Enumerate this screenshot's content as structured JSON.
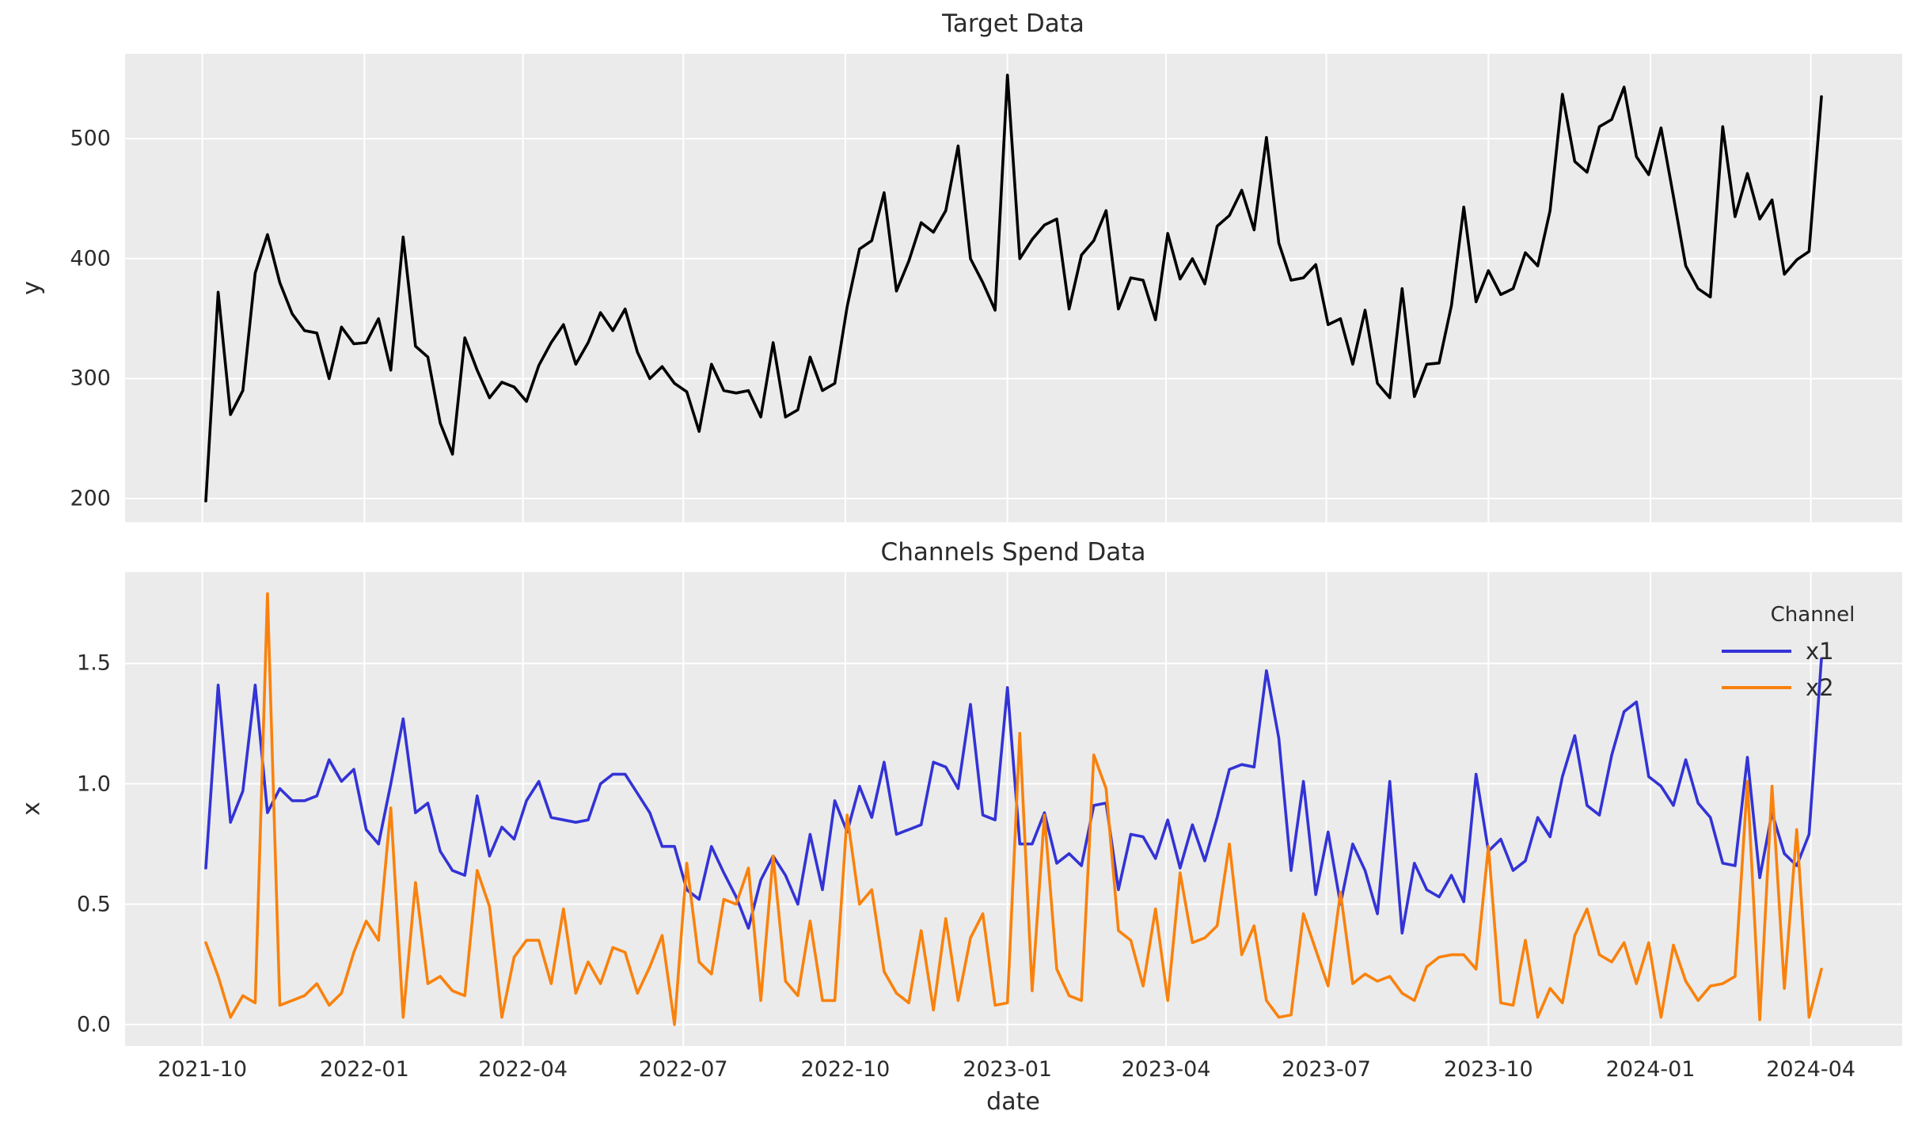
{
  "figure": {
    "background": "#ffffff",
    "axes_background": "#ebebeb",
    "grid_color": "#ffffff",
    "text_color": "#2b2b2b"
  },
  "chart_data": [
    {
      "type": "line",
      "title": "Target Data",
      "ylabel": "y",
      "xlabel": "",
      "grid": true,
      "x_tick_labels_visible": false,
      "ylim": [
        180.25,
        570.75
      ],
      "yticks": {
        "values": [
          200,
          300,
          400,
          500
        ],
        "labels": [
          "200",
          "300",
          "400",
          "500"
        ]
      },
      "xticks": {
        "dates": [
          "2021-10-01",
          "2022-01-01",
          "2022-04-01",
          "2022-07-01",
          "2022-10-01",
          "2023-01-01",
          "2023-04-01",
          "2023-07-01",
          "2023-10-01",
          "2024-01-01",
          "2024-04-01"
        ],
        "labels": [
          "2021-10",
          "2022-01",
          "2022-04",
          "2022-07",
          "2022-10",
          "2023-01",
          "2023-04",
          "2023-07",
          "2023-10",
          "2024-01",
          "2024-04"
        ]
      },
      "x_dates": [
        "2021-10-03",
        "2021-10-10",
        "2021-10-17",
        "2021-10-24",
        "2021-10-31",
        "2021-11-07",
        "2021-11-14",
        "2021-11-21",
        "2021-11-28",
        "2021-12-05",
        "2021-12-12",
        "2021-12-19",
        "2021-12-26",
        "2022-01-02",
        "2022-01-09",
        "2022-01-16",
        "2022-01-23",
        "2022-01-30",
        "2022-02-06",
        "2022-02-13",
        "2022-02-20",
        "2022-02-27",
        "2022-03-06",
        "2022-03-13",
        "2022-03-20",
        "2022-03-27",
        "2022-04-03",
        "2022-04-10",
        "2022-04-17",
        "2022-04-24",
        "2022-05-01",
        "2022-05-08",
        "2022-05-15",
        "2022-05-22",
        "2022-05-29",
        "2022-06-05",
        "2022-06-12",
        "2022-06-19",
        "2022-06-26",
        "2022-07-03",
        "2022-07-10",
        "2022-07-17",
        "2022-07-24",
        "2022-07-31",
        "2022-08-07",
        "2022-08-14",
        "2022-08-21",
        "2022-08-28",
        "2022-09-04",
        "2022-09-11",
        "2022-09-18",
        "2022-09-25",
        "2022-10-02",
        "2022-10-09",
        "2022-10-16",
        "2022-10-23",
        "2022-10-30",
        "2022-11-06",
        "2022-11-13",
        "2022-11-20",
        "2022-11-27",
        "2022-12-04",
        "2022-12-11",
        "2022-12-18",
        "2022-12-25",
        "2023-01-01",
        "2023-01-08",
        "2023-01-15",
        "2023-01-22",
        "2023-01-29",
        "2023-02-05",
        "2023-02-12",
        "2023-02-19",
        "2023-02-26",
        "2023-03-05",
        "2023-03-12",
        "2023-03-19",
        "2023-03-26",
        "2023-04-02",
        "2023-04-09",
        "2023-04-16",
        "2023-04-23",
        "2023-04-30",
        "2023-05-07",
        "2023-05-14",
        "2023-05-21",
        "2023-05-28",
        "2023-06-04",
        "2023-06-11",
        "2023-06-18",
        "2023-06-25",
        "2023-07-02",
        "2023-07-09",
        "2023-07-16",
        "2023-07-23",
        "2023-07-30",
        "2023-08-06",
        "2023-08-13",
        "2023-08-20",
        "2023-08-27",
        "2023-09-03",
        "2023-09-10",
        "2023-09-17",
        "2023-09-24",
        "2023-10-01",
        "2023-10-08",
        "2023-10-15",
        "2023-10-22",
        "2023-10-29",
        "2023-11-05",
        "2023-11-12",
        "2023-11-19",
        "2023-11-26",
        "2023-12-03",
        "2023-12-10",
        "2023-12-17",
        "2023-12-24",
        "2023-12-31",
        "2024-01-07",
        "2024-01-14",
        "2024-01-21",
        "2024-01-28",
        "2024-02-04",
        "2024-02-11",
        "2024-02-18",
        "2024-02-25",
        "2024-03-03",
        "2024-03-10",
        "2024-03-17",
        "2024-03-24",
        "2024-03-31",
        "2024-04-07"
      ],
      "series": [
        {
          "name": "y",
          "color": "#000000",
          "values": [
            198,
            372,
            270,
            290,
            388,
            420,
            380,
            354,
            340,
            338,
            300,
            343,
            329,
            330,
            350,
            307,
            418,
            327,
            318,
            263,
            237,
            334,
            307,
            284,
            297,
            293,
            281,
            311,
            330,
            345,
            312,
            330,
            355,
            340,
            358,
            322,
            300,
            310,
            296,
            289,
            256,
            312,
            290,
            288,
            290,
            268,
            330,
            268,
            274,
            318,
            290,
            296,
            360,
            408,
            415,
            455,
            373,
            398,
            430,
            422,
            440,
            494,
            400,
            380,
            357,
            553,
            400,
            416,
            428,
            433,
            358,
            403,
            415,
            440,
            358,
            384,
            382,
            349,
            421,
            383,
            400,
            379,
            427,
            436,
            457,
            424,
            501,
            413,
            382,
            384,
            395,
            345,
            350,
            312,
            357,
            296,
            284,
            375,
            285,
            312,
            313,
            361,
            443,
            364,
            390,
            370,
            375,
            405,
            394,
            440,
            537,
            481,
            472,
            510,
            516,
            543,
            485,
            470,
            509,
            452,
            394,
            375,
            368,
            510,
            435,
            471,
            433,
            449,
            387,
            399,
            406,
            535
          ]
        }
      ]
    },
    {
      "type": "line",
      "title": "Channels Spend Data",
      "ylabel": "x",
      "xlabel": "date",
      "grid": true,
      "x_tick_labels_visible": true,
      "legend": {
        "title": "Channel",
        "position": "upper right"
      },
      "ylim": [
        -0.0895,
        1.8795
      ],
      "yticks": {
        "values": [
          0.0,
          0.5,
          1.0,
          1.5
        ],
        "labels": [
          "0.0",
          "0.5",
          "1.0",
          "1.5"
        ]
      },
      "xticks": {
        "dates": [
          "2021-10-01",
          "2022-01-01",
          "2022-04-01",
          "2022-07-01",
          "2022-10-01",
          "2023-01-01",
          "2023-04-01",
          "2023-07-01",
          "2023-10-01",
          "2024-01-01",
          "2024-04-01"
        ],
        "labels": [
          "2021-10",
          "2022-01",
          "2022-04",
          "2022-07",
          "2022-10",
          "2023-01",
          "2023-04",
          "2023-07",
          "2023-10",
          "2024-01",
          "2024-04"
        ]
      },
      "x_dates": [
        "2021-10-03",
        "2021-10-10",
        "2021-10-17",
        "2021-10-24",
        "2021-10-31",
        "2021-11-07",
        "2021-11-14",
        "2021-11-21",
        "2021-11-28",
        "2021-12-05",
        "2021-12-12",
        "2021-12-19",
        "2021-12-26",
        "2022-01-02",
        "2022-01-09",
        "2022-01-16",
        "2022-01-23",
        "2022-01-30",
        "2022-02-06",
        "2022-02-13",
        "2022-02-20",
        "2022-02-27",
        "2022-03-06",
        "2022-03-13",
        "2022-03-20",
        "2022-03-27",
        "2022-04-03",
        "2022-04-10",
        "2022-04-17",
        "2022-04-24",
        "2022-05-01",
        "2022-05-08",
        "2022-05-15",
        "2022-05-22",
        "2022-05-29",
        "2022-06-05",
        "2022-06-12",
        "2022-06-19",
        "2022-06-26",
        "2022-07-03",
        "2022-07-10",
        "2022-07-17",
        "2022-07-24",
        "2022-07-31",
        "2022-08-07",
        "2022-08-14",
        "2022-08-21",
        "2022-08-28",
        "2022-09-04",
        "2022-09-11",
        "2022-09-18",
        "2022-09-25",
        "2022-10-02",
        "2022-10-09",
        "2022-10-16",
        "2022-10-23",
        "2022-10-30",
        "2022-11-06",
        "2022-11-13",
        "2022-11-20",
        "2022-11-27",
        "2022-12-04",
        "2022-12-11",
        "2022-12-18",
        "2022-12-25",
        "2023-01-01",
        "2023-01-08",
        "2023-01-15",
        "2023-01-22",
        "2023-01-29",
        "2023-02-05",
        "2023-02-12",
        "2023-02-19",
        "2023-02-26",
        "2023-03-05",
        "2023-03-12",
        "2023-03-19",
        "2023-03-26",
        "2023-04-02",
        "2023-04-09",
        "2023-04-16",
        "2023-04-23",
        "2023-04-30",
        "2023-05-07",
        "2023-05-14",
        "2023-05-21",
        "2023-05-28",
        "2023-06-04",
        "2023-06-11",
        "2023-06-18",
        "2023-06-25",
        "2023-07-02",
        "2023-07-09",
        "2023-07-16",
        "2023-07-23",
        "2023-07-30",
        "2023-08-06",
        "2023-08-13",
        "2023-08-20",
        "2023-08-27",
        "2023-09-03",
        "2023-09-10",
        "2023-09-17",
        "2023-09-24",
        "2023-10-01",
        "2023-10-08",
        "2023-10-15",
        "2023-10-22",
        "2023-10-29",
        "2023-11-05",
        "2023-11-12",
        "2023-11-19",
        "2023-11-26",
        "2023-12-03",
        "2023-12-10",
        "2023-12-17",
        "2023-12-24",
        "2023-12-31",
        "2024-01-07",
        "2024-01-14",
        "2024-01-21",
        "2024-01-28",
        "2024-02-04",
        "2024-02-11",
        "2024-02-18",
        "2024-02-25",
        "2024-03-03",
        "2024-03-10",
        "2024-03-17",
        "2024-03-24",
        "2024-03-31",
        "2024-04-07"
      ],
      "series": [
        {
          "name": "x1",
          "color": "#3333d6",
          "values": [
            0.65,
            1.41,
            0.84,
            0.97,
            1.41,
            0.88,
            0.98,
            0.93,
            0.93,
            0.95,
            1.1,
            1.01,
            1.06,
            0.81,
            0.75,
            1.0,
            1.27,
            0.88,
            0.92,
            0.72,
            0.64,
            0.62,
            0.95,
            0.7,
            0.82,
            0.77,
            0.93,
            1.01,
            0.86,
            0.85,
            0.84,
            0.85,
            1.0,
            1.04,
            1.04,
            0.96,
            0.88,
            0.74,
            0.74,
            0.56,
            0.52,
            0.74,
            0.63,
            0.53,
            0.4,
            0.6,
            0.7,
            0.62,
            0.5,
            0.79,
            0.56,
            0.93,
            0.8,
            0.99,
            0.86,
            1.09,
            0.79,
            0.81,
            0.83,
            1.09,
            1.07,
            0.98,
            1.33,
            0.87,
            0.85,
            1.4,
            0.75,
            0.75,
            0.88,
            0.67,
            0.71,
            0.66,
            0.91,
            0.92,
            0.56,
            0.79,
            0.78,
            0.69,
            0.85,
            0.65,
            0.83,
            0.68,
            0.86,
            1.06,
            1.08,
            1.07,
            1.47,
            1.19,
            0.64,
            1.01,
            0.54,
            0.8,
            0.5,
            0.75,
            0.64,
            0.46,
            1.01,
            0.38,
            0.67,
            0.56,
            0.53,
            0.62,
            0.51,
            1.04,
            0.72,
            0.77,
            0.64,
            0.68,
            0.86,
            0.78,
            1.03,
            1.2,
            0.91,
            0.87,
            1.12,
            1.3,
            1.34,
            1.03,
            0.99,
            0.91,
            1.1,
            0.92,
            0.86,
            0.67,
            0.66,
            1.11,
            0.61,
            0.88,
            0.71,
            0.66,
            0.79,
            1.52
          ]
        },
        {
          "name": "x2",
          "color": "#f9820d",
          "values": [
            0.34,
            0.2,
            0.03,
            0.12,
            0.09,
            1.79,
            0.08,
            0.1,
            0.12,
            0.17,
            0.08,
            0.13,
            0.3,
            0.43,
            0.35,
            0.9,
            0.03,
            0.59,
            0.17,
            0.2,
            0.14,
            0.12,
            0.64,
            0.49,
            0.03,
            0.28,
            0.35,
            0.35,
            0.17,
            0.48,
            0.13,
            0.26,
            0.17,
            0.32,
            0.3,
            0.13,
            0.24,
            0.37,
            0.0,
            0.67,
            0.26,
            0.21,
            0.52,
            0.5,
            0.65,
            0.1,
            0.7,
            0.18,
            0.12,
            0.43,
            0.1,
            0.1,
            0.87,
            0.5,
            0.56,
            0.22,
            0.13,
            0.09,
            0.39,
            0.06,
            0.44,
            0.1,
            0.36,
            0.46,
            0.08,
            0.09,
            1.21,
            0.14,
            0.87,
            0.23,
            0.12,
            0.1,
            1.12,
            0.98,
            0.39,
            0.35,
            0.16,
            0.48,
            0.1,
            0.63,
            0.34,
            0.36,
            0.41,
            0.75,
            0.29,
            0.41,
            0.1,
            0.03,
            0.04,
            0.46,
            0.31,
            0.16,
            0.55,
            0.17,
            0.21,
            0.18,
            0.2,
            0.13,
            0.1,
            0.24,
            0.28,
            0.29,
            0.29,
            0.23,
            0.74,
            0.09,
            0.08,
            0.35,
            0.03,
            0.15,
            0.09,
            0.37,
            0.48,
            0.29,
            0.26,
            0.34,
            0.17,
            0.34,
            0.03,
            0.33,
            0.18,
            0.1,
            0.16,
            0.17,
            0.2,
            1.01,
            0.02,
            0.99,
            0.15,
            0.81,
            0.03,
            0.23
          ]
        }
      ]
    }
  ]
}
